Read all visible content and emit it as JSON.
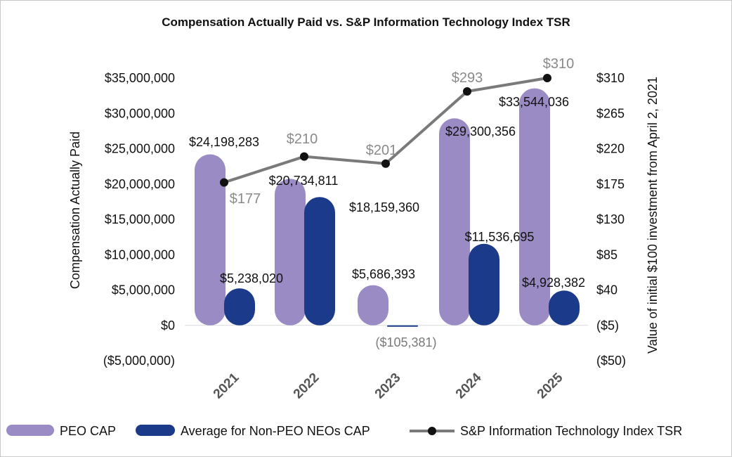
{
  "chart_data": {
    "type": "bar",
    "title": "Compensation Actually Paid vs. S&P Information Technology Index TSR",
    "categories": [
      "2021",
      "2022",
      "2023",
      "2024",
      "2025"
    ],
    "ylabel": "Compensation Actually Paid",
    "y2label": "Value of initial $100 investment from April 2, 2021",
    "ylim": [
      -5000000,
      35000000
    ],
    "y2lim": [
      -50,
      310
    ],
    "yticks": [
      {
        "value": 35000000,
        "label": "$35,000,000"
      },
      {
        "value": 30000000,
        "label": "$30,000,000"
      },
      {
        "value": 25000000,
        "label": "$25,000,000"
      },
      {
        "value": 20000000,
        "label": "$20,000,000"
      },
      {
        "value": 15000000,
        "label": "$15,000,000"
      },
      {
        "value": 10000000,
        "label": "$10,000,000"
      },
      {
        "value": 5000000,
        "label": "$5,000,000"
      },
      {
        "value": 0,
        "label": "$0"
      },
      {
        "value": -5000000,
        "label": "($5,000,000)"
      }
    ],
    "y2ticks": [
      {
        "value": 310,
        "label": "$310"
      },
      {
        "value": 265,
        "label": "$265"
      },
      {
        "value": 220,
        "label": "$220"
      },
      {
        "value": 175,
        "label": "$175"
      },
      {
        "value": 130,
        "label": "$130"
      },
      {
        "value": 85,
        "label": "$85"
      },
      {
        "value": 40,
        "label": "$40"
      },
      {
        "value": -5,
        "label": "($5)"
      },
      {
        "value": -50,
        "label": "($50)"
      }
    ],
    "series": [
      {
        "name": "PEO CAP",
        "type": "bar",
        "axis": "left",
        "color": "#9b8bc4",
        "values": [
          24198283,
          20734811,
          5686393,
          29300356,
          33544036
        ],
        "labels": [
          "$24,198,283",
          "$20,734,811",
          "$5,686,393",
          "$29,300,356",
          "$33,544,036"
        ]
      },
      {
        "name": "Average for Non-PEO NEOs CAP",
        "type": "bar",
        "axis": "left",
        "color": "#1b3a8a",
        "values": [
          5238020,
          18159360,
          -105381,
          11536695,
          4928382
        ],
        "labels": [
          "$5,238,020",
          "$18,159,360",
          "($105,381)",
          "$11,536,695",
          "$4,928,382"
        ]
      },
      {
        "name": "S&P Information Technology Index TSR",
        "type": "line",
        "axis": "right",
        "color": "#7a7a7a",
        "values": [
          177,
          210,
          201,
          293,
          310
        ],
        "labels": [
          "$177",
          "$210",
          "$201",
          "$293",
          "$310"
        ]
      }
    ],
    "legend": "bottom"
  }
}
